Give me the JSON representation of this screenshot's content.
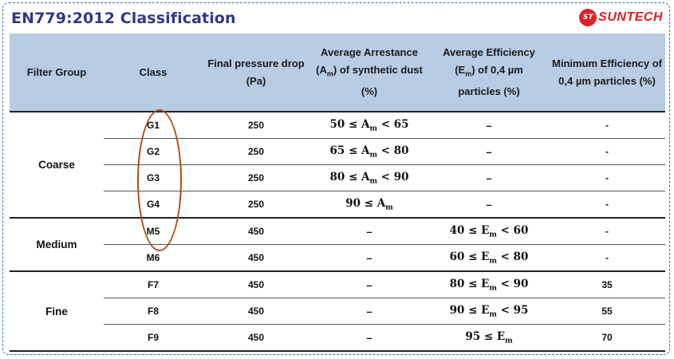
{
  "title": "EN779:2012 Classification",
  "logo": {
    "badge": "ST",
    "text": "SUNTECH",
    "color": "#e31e24"
  },
  "colors": {
    "header_bg": "#b8cce4",
    "title": "#2e3a87",
    "oval": "#b24a12"
  },
  "headers": [
    "Filter Group",
    "Class",
    "Final pressure drop (Pa)",
    "Average Arrestance (Am) of synthetic dust (%)",
    "Average Efficiency (Em) of 0,4 µm particles (%)",
    "Minimum Efficiency of 0,4 µm particles (%)"
  ],
  "groups": [
    {
      "name": "Coarse",
      "rows": [
        {
          "class": "G1",
          "pressure": "250",
          "arrestance": "50 ≤ Am < 65",
          "avg_eff": "–",
          "min_eff": "-"
        },
        {
          "class": "G2",
          "pressure": "250",
          "arrestance": "65 ≤ Am < 80",
          "avg_eff": "–",
          "min_eff": "-"
        },
        {
          "class": "G3",
          "pressure": "250",
          "arrestance": "80 ≤ Am < 90",
          "avg_eff": "–",
          "min_eff": "-"
        },
        {
          "class": "G4",
          "pressure": "250",
          "arrestance": "90 ≤ Am",
          "avg_eff": "–",
          "min_eff": "-"
        }
      ]
    },
    {
      "name": "Medium",
      "rows": [
        {
          "class": "M5",
          "pressure": "450",
          "arrestance": "–",
          "avg_eff": "40 ≤ Em < 60",
          "min_eff": "-"
        },
        {
          "class": "M6",
          "pressure": "450",
          "arrestance": "–",
          "avg_eff": "60 ≤ Em < 80",
          "min_eff": "-"
        }
      ]
    },
    {
      "name": "Fine",
      "rows": [
        {
          "class": "F7",
          "pressure": "450",
          "arrestance": "–",
          "avg_eff": "80 ≤ Em < 90",
          "min_eff": "35"
        },
        {
          "class": "F8",
          "pressure": "450",
          "arrestance": "–",
          "avg_eff": "90 ≤ Em < 95",
          "min_eff": "55"
        },
        {
          "class": "F9",
          "pressure": "450",
          "arrestance": "–",
          "avg_eff": "95 ≤ Em",
          "min_eff": "70"
        }
      ]
    }
  ]
}
